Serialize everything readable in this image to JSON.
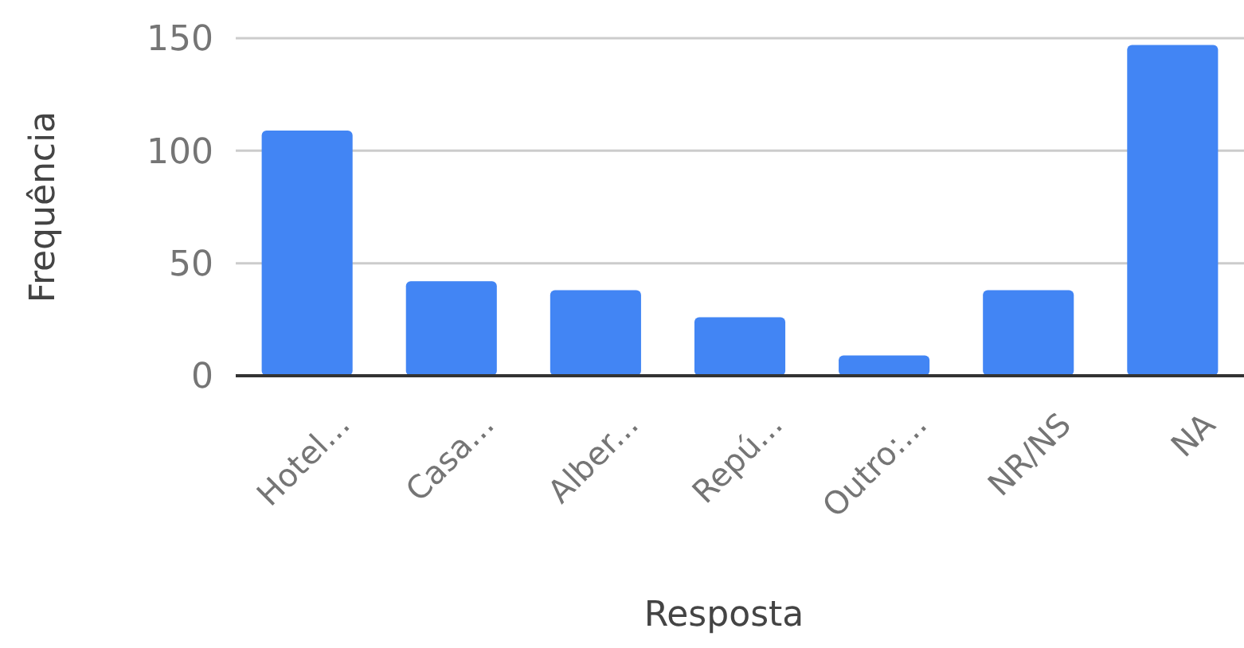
{
  "chart_data": {
    "type": "bar",
    "xlabel": "Resposta",
    "ylabel": "Frequência",
    "categories": [
      "Hotel...",
      "Casa...",
      "Alber...",
      "Repú...",
      "Outro:...",
      "NR/NS",
      "NA"
    ],
    "values": [
      109,
      42,
      38,
      26,
      9,
      38,
      147
    ],
    "color": "#4285f4",
    "ylim": [
      0,
      150
    ],
    "yticks": [
      0,
      50,
      100,
      150
    ],
    "grid": "y"
  }
}
